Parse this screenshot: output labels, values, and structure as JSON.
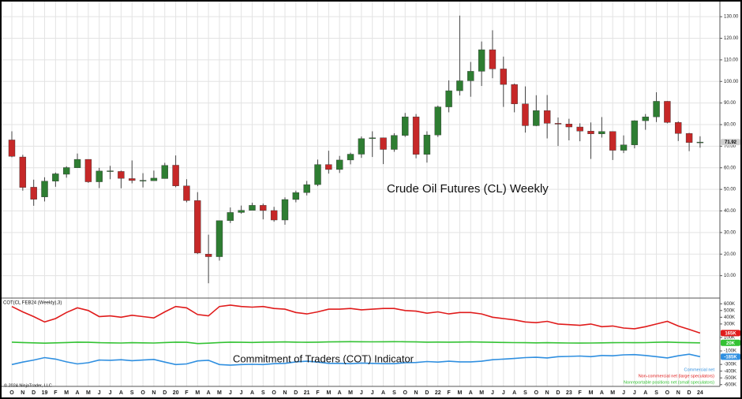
{
  "chart_data": [
    {
      "type": "candlestick",
      "title": "Crude Oil Futures (CL) Weekly",
      "categories": [
        "O",
        "N",
        "D",
        "19",
        "F",
        "M",
        "A",
        "M",
        "J",
        "J",
        "A",
        "S",
        "O",
        "N",
        "D",
        "20",
        "F",
        "M",
        "A",
        "M",
        "J",
        "J",
        "A",
        "S",
        "O",
        "N",
        "D",
        "21",
        "F",
        "M",
        "A",
        "M",
        "J",
        "J",
        "A",
        "S",
        "O",
        "N",
        "D",
        "22",
        "F",
        "M",
        "A",
        "M",
        "J",
        "J",
        "A",
        "S",
        "O",
        "N",
        "D",
        "23",
        "F",
        "M",
        "A",
        "M",
        "J",
        "J",
        "A",
        "S",
        "O",
        "N",
        "D",
        "24"
      ],
      "open": [
        72.9,
        65,
        51,
        46.5,
        53.8,
        57,
        60,
        63.9,
        53.5,
        58.5,
        58.3,
        55,
        54,
        54,
        55,
        61.2,
        51.6,
        44.8,
        20,
        18.8,
        35.5,
        39.3,
        40.3,
        42.6,
        40.2,
        35.8,
        45.3,
        48.5,
        52.2,
        61.5,
        59.2,
        63.6,
        66.3,
        73.5,
        73.9,
        68.5,
        75,
        83.6,
        66.2,
        75.2,
        88.2,
        95.7,
        100.3,
        104.7,
        114.7,
        105.8,
        98.6,
        89.6,
        79.5,
        86.5,
        80.6,
        80.3,
        78.9,
        77,
        75.7,
        76.8,
        68.1,
        70.6,
        81.8,
        83.6,
        90.8,
        81,
        75.9,
        71.7
      ],
      "high": [
        76.9,
        66,
        54.5,
        55.6,
        57.8,
        60.7,
        66.6,
        63.9,
        60,
        60.9,
        58.7,
        63.4,
        57.5,
        58.7,
        62.3,
        65.7,
        54.7,
        48.7,
        29,
        35.5,
        41.6,
        42.5,
        43.8,
        43.4,
        41.9,
        46.3,
        49.4,
        53.9,
        63.8,
        67.9,
        65.5,
        67,
        74.5,
        76.9,
        74,
        76,
        85.4,
        84.9,
        76.9,
        88.8,
        100.5,
        130.5,
        109,
        118.5,
        123.7,
        111.5,
        99,
        97.7,
        93.6,
        93.7,
        83.3,
        82.7,
        80.6,
        81,
        83.5,
        76.9,
        75,
        82,
        84.9,
        95,
        90.9,
        81.5,
        76.2,
        74.6
      ],
      "low": [
        64.9,
        49.4,
        42.4,
        44.4,
        51.2,
        55.4,
        60,
        53,
        50.6,
        54.7,
        50.5,
        52.8,
        50.9,
        54,
        55,
        51,
        44,
        20,
        6.5,
        17,
        34.4,
        38.7,
        40.3,
        36.1,
        35,
        33.6,
        44,
        47.2,
        51.5,
        57.3,
        57.6,
        61.6,
        64.6,
        65,
        61.7,
        67.4,
        74.3,
        64.4,
        62.4,
        74.3,
        85.7,
        93.5,
        92.9,
        97.9,
        101.5,
        88.2,
        85.7,
        76.3,
        79.3,
        73.6,
        70.1,
        72.7,
        72.3,
        64.1,
        74,
        63.6,
        66.8,
        69,
        77.6,
        81.2,
        80.6,
        72.4,
        67.7,
        69.3
      ],
      "close": [
        65.3,
        50.9,
        45.4,
        53.8,
        57.2,
        60.1,
        63.9,
        53.5,
        58.5,
        58.6,
        55.1,
        54.1,
        54.2,
        55.2,
        61.1,
        51.6,
        44.8,
        20.5,
        18.8,
        35.5,
        39.3,
        40.3,
        42.6,
        40.2,
        35.8,
        45.3,
        48.5,
        52.2,
        61.5,
        59.2,
        63.6,
        66.3,
        73.5,
        73.9,
        68.5,
        75,
        83.6,
        66.2,
        75.2,
        88.2,
        95.7,
        100.3,
        104.7,
        114.7,
        105.8,
        98.6,
        89.6,
        79.5,
        86.5,
        80.6,
        80.3,
        78.9,
        77,
        75.7,
        76.8,
        68.1,
        70.6,
        81.8,
        83.6,
        90.8,
        81,
        75.9,
        71.7,
        71.92
      ],
      "last_value_label": "71.92",
      "up_color": "#2e7d32",
      "down_color": "#c62828",
      "ylim": [
        0,
        137
      ],
      "yticks": [
        {
          "value": 10,
          "label": "10.00"
        },
        {
          "value": 20,
          "label": "20.00"
        },
        {
          "value": 30,
          "label": "30.00"
        },
        {
          "value": 40,
          "label": "40.00"
        },
        {
          "value": 50,
          "label": "50.00"
        },
        {
          "value": 60,
          "label": "60.00"
        },
        {
          "value": 70,
          "label": "70.00"
        },
        {
          "value": 80,
          "label": "80.00"
        },
        {
          "value": 90,
          "label": "90.00"
        },
        {
          "value": 100,
          "label": "100.00"
        },
        {
          "value": 110,
          "label": "110.00"
        },
        {
          "value": 120,
          "label": "120.00"
        },
        {
          "value": 130,
          "label": "130.00"
        }
      ],
      "grid": true
    },
    {
      "type": "line",
      "title": "COT(CL FEB24 (Weekly),3)",
      "subtitle": "Commitment of Traders (COT) Indicator",
      "series": [
        {
          "name": "Commercial net",
          "color": "#2f8fe0",
          "last_value_label": "-185K",
          "values": [
            -302000,
            -266000,
            -235000,
            -199000,
            -221000,
            -262000,
            -293000,
            -275000,
            -235000,
            -239000,
            -230000,
            -244000,
            -235000,
            -226000,
            -266000,
            -302000,
            -293000,
            -248000,
            -239000,
            -302000,
            -311000,
            -302000,
            -298000,
            -302000,
            -289000,
            -284000,
            -262000,
            -253000,
            -266000,
            -284000,
            -284000,
            -289000,
            -280000,
            -284000,
            -289000,
            -289000,
            -275000,
            -271000,
            -257000,
            -266000,
            -253000,
            -262000,
            -262000,
            -253000,
            -230000,
            -221000,
            -212000,
            -199000,
            -194000,
            -203000,
            -185000,
            -181000,
            -176000,
            -185000,
            -167000,
            -172000,
            -158000,
            -154000,
            -167000,
            -185000,
            -203000,
            -172000,
            -149000,
            -185000
          ]
        },
        {
          "name": "Non-commercial net (large speculators)",
          "color": "#e01b1b",
          "last_value_label": "165K",
          "values": [
            560000,
            480000,
            410000,
            330000,
            380000,
            470000,
            540000,
            500000,
            410000,
            420000,
            400000,
            430000,
            410000,
            390000,
            480000,
            560000,
            540000,
            440000,
            420000,
            560000,
            580000,
            560000,
            550000,
            560000,
            530000,
            520000,
            470000,
            450000,
            480000,
            520000,
            520000,
            530000,
            510000,
            520000,
            530000,
            530000,
            500000,
            490000,
            460000,
            480000,
            450000,
            470000,
            470000,
            450000,
            400000,
            380000,
            360000,
            330000,
            320000,
            340000,
            300000,
            290000,
            280000,
            300000,
            260000,
            270000,
            240000,
            230000,
            260000,
            300000,
            340000,
            270000,
            220000,
            165000
          ]
        },
        {
          "name": "Nonreportable positions net (small speculators)",
          "color": "#33c233",
          "last_value_label": "20K",
          "values": [
            30000,
            25000,
            20000,
            15000,
            20000,
            25000,
            30000,
            28000,
            22000,
            20000,
            18000,
            22000,
            20000,
            18000,
            25000,
            30000,
            28000,
            10000,
            15000,
            25000,
            30000,
            28000,
            26000,
            30000,
            32000,
            34000,
            30000,
            28000,
            30000,
            34000,
            36000,
            38000,
            36000,
            35000,
            36000,
            38000,
            36000,
            34000,
            30000,
            32000,
            30000,
            32000,
            34000,
            32000,
            28000,
            26000,
            24000,
            22000,
            20000,
            22000,
            20000,
            18000,
            16000,
            18000,
            20000,
            22000,
            24000,
            22000,
            24000,
            28000,
            32000,
            26000,
            22000,
            20000
          ]
        }
      ],
      "ylim": [
        -626000,
        673000
      ],
      "yticks": [
        {
          "value": 600000,
          "label": "600K"
        },
        {
          "value": 500000,
          "label": "500K"
        },
        {
          "value": 400000,
          "label": "400K"
        },
        {
          "value": 300000,
          "label": "300K"
        },
        {
          "value": 100000,
          "label": "100K"
        },
        {
          "value": -100000,
          "label": "-100K"
        },
        {
          "value": -300000,
          "label": "-300K"
        },
        {
          "value": -400000,
          "label": "-400K"
        },
        {
          "value": -500000,
          "label": "-500K"
        },
        {
          "value": -600000,
          "label": "-600K"
        }
      ],
      "legend": "bottom-right"
    }
  ],
  "copyright": "© 2024 NinjaTrader, LLC"
}
